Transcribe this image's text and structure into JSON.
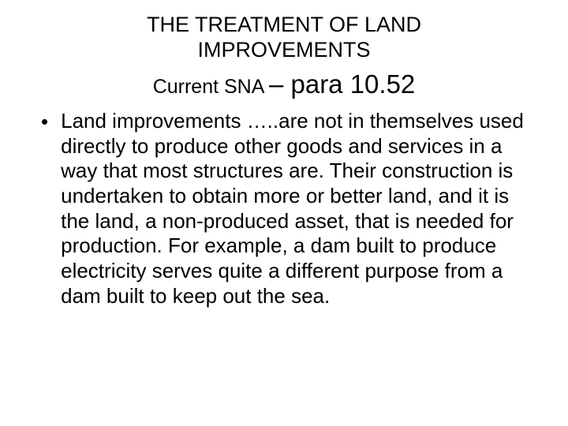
{
  "title_line1": "THE TREATMENT OF LAND",
  "title_line2": "IMPROVEMENTS",
  "subtitle_small": "Current SNA ",
  "subtitle_large": "– para 10.52",
  "bullet_text": "Land improvements …..are not in themselves used directly to produce other goods and services in a way that most structures are. Their construction is undertaken to obtain more or better land, and it is the land, a non-produced asset, that is needed for production. For example, a dam built to produce electricity serves quite a different purpose from a dam built to keep out the sea.",
  "colors": {
    "background": "#ffffff",
    "text": "#000000"
  },
  "typography": {
    "title_fontsize": 27,
    "subtitle_small_fontsize": 25,
    "subtitle_large_fontsize": 33,
    "body_fontsize": 26,
    "font_family": "Arial"
  }
}
